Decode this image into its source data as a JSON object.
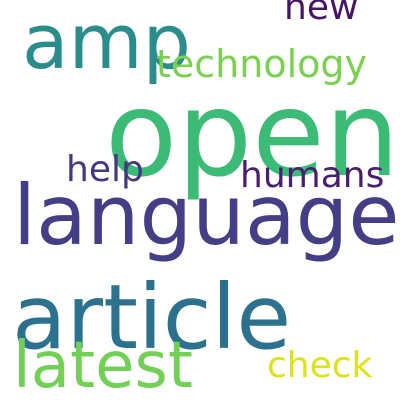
{
  "words": [
    {
      "text": "amp",
      "color": "#2a8d8b"
    },
    {
      "text": "new",
      "color": "#481467"
    },
    {
      "text": "technology",
      "color": "#7ad151"
    },
    {
      "text": "open",
      "color": "#3bbb75"
    },
    {
      "text": "help",
      "color": "#453781"
    },
    {
      "text": "humans",
      "color": "#481f70"
    },
    {
      "text": "language",
      "color": "#433e85"
    },
    {
      "text": "article",
      "color": "#2c728e"
    },
    {
      "text": "latest",
      "color": "#73d056"
    },
    {
      "text": "check",
      "color": "#dde318"
    }
  ]
}
